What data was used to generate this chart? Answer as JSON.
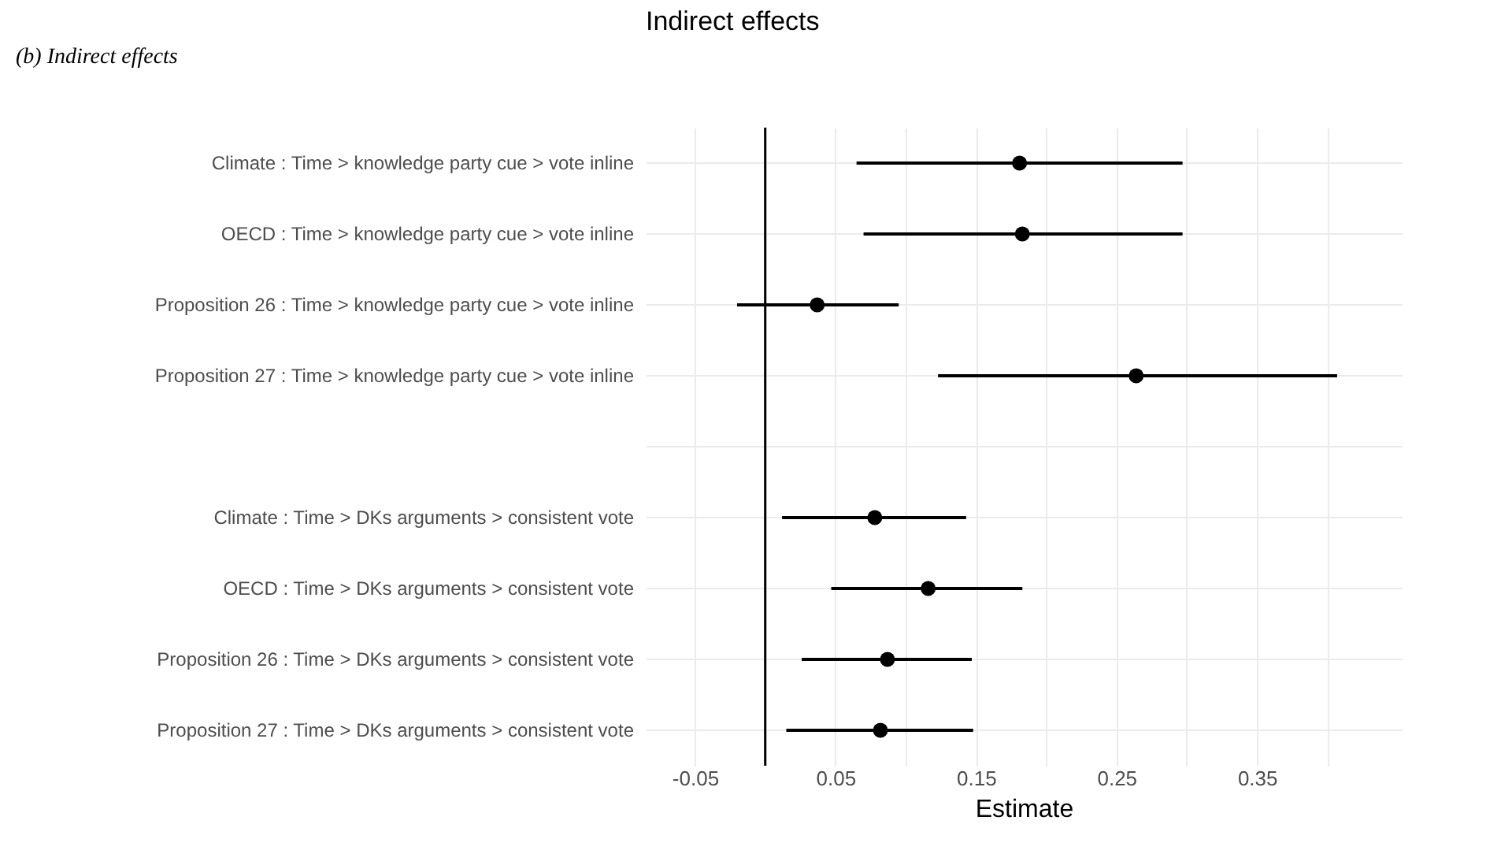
{
  "chart_data": {
    "type": "scatter",
    "orientation": "horizontal",
    "title": "Indirect effects",
    "xlabel": "Estimate",
    "annotations": [
      "(b)      Indirect effects"
    ],
    "categories": [
      "Climate : Time > knowledge party cue > vote inline",
      "OECD : Time > knowledge party cue > vote inline",
      "Proposition 26 : Time > knowledge party cue > vote inline",
      "Proposition 27 : Time > knowledge party cue > vote inline",
      null,
      "Climate : Time > DKs arguments > consistent vote",
      "OECD : Time > DKs arguments > consistent vote",
      "Proposition 26 : Time > DKs arguments > consistent vote",
      "Proposition 27 : Time > DKs arguments > consistent vote"
    ],
    "series": [
      {
        "color": "#000000",
        "values": [
          0.181,
          0.183,
          0.037,
          0.264,
          null,
          0.078,
          0.116,
          0.087,
          0.082
        ],
        "errors": [
          [
            0.065,
            0.297
          ],
          [
            0.07,
            0.297
          ],
          [
            -0.02,
            0.095
          ],
          [
            0.123,
            0.407
          ],
          null,
          [
            0.012,
            0.143
          ],
          [
            0.047,
            0.183
          ],
          [
            0.026,
            0.147
          ],
          [
            0.015,
            0.148
          ]
        ]
      }
    ],
    "xlim": [
      -0.085,
      0.453
    ],
    "xticks": [
      -0.05,
      {
        "value": 0,
        "label": null
      },
      0.05,
      {
        "value": 0.1,
        "label": null
      },
      0.15,
      {
        "value": 0.2,
        "label": null
      },
      0.25,
      {
        "value": 0.3,
        "label": null
      },
      0.35,
      {
        "value": 0.4,
        "label": null
      }
    ],
    "ref_lines": [
      {
        "axis": "x",
        "value": 0,
        "color": "#000000"
      }
    ],
    "grid": true,
    "marker": "circle"
  }
}
